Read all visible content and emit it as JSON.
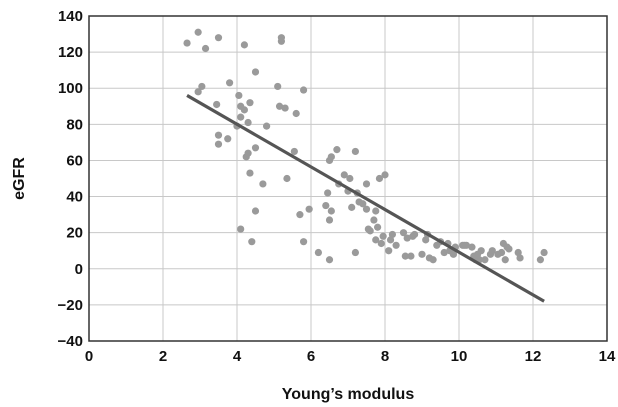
{
  "chart_data": {
    "type": "scatter",
    "title": "",
    "xlabel": "Young’s modulus",
    "ylabel": "eGFR",
    "xlim": [
      0,
      14
    ],
    "ylim": [
      -40,
      140
    ],
    "xticks": [
      0,
      2,
      4,
      6,
      8,
      10,
      12,
      14
    ],
    "yticks": [
      -40,
      -20,
      0,
      20,
      40,
      60,
      80,
      100,
      120,
      140
    ],
    "xtick_labels": [
      "0",
      "2",
      "4",
      "6",
      "8",
      "10",
      "12",
      "14"
    ],
    "ytick_labels": [
      "−40",
      "−20",
      "0",
      "20",
      "40",
      "60",
      "80",
      "100",
      "120",
      "140"
    ],
    "grid": true,
    "colors": {
      "points": "#9a9a9a",
      "trendline": "#555555"
    },
    "series": [
      {
        "points": [
          [
            2.65,
            125
          ],
          [
            2.95,
            131
          ],
          [
            3.05,
            101
          ],
          [
            3.15,
            122
          ],
          [
            3.5,
            128
          ],
          [
            2.95,
            98
          ],
          [
            3.45,
            91
          ],
          [
            3.5,
            74
          ],
          [
            3.5,
            69
          ],
          [
            3.75,
            72
          ],
          [
            3.8,
            103
          ],
          [
            4.0,
            79
          ],
          [
            4.05,
            96
          ],
          [
            4.1,
            90
          ],
          [
            4.1,
            84
          ],
          [
            4.2,
            124
          ],
          [
            4.2,
            88
          ],
          [
            4.25,
            62
          ],
          [
            4.3,
            64
          ],
          [
            4.3,
            81
          ],
          [
            4.35,
            92
          ],
          [
            4.35,
            53
          ],
          [
            4.5,
            109
          ],
          [
            4.5,
            67
          ],
          [
            4.5,
            32
          ],
          [
            4.7,
            47
          ],
          [
            4.8,
            79
          ],
          [
            4.1,
            22
          ],
          [
            4.4,
            15
          ],
          [
            5.1,
            101
          ],
          [
            5.15,
            90
          ],
          [
            5.2,
            128
          ],
          [
            5.2,
            126
          ],
          [
            5.3,
            89
          ],
          [
            5.35,
            50
          ],
          [
            5.55,
            65
          ],
          [
            5.6,
            86
          ],
          [
            5.7,
            30
          ],
          [
            5.8,
            99
          ],
          [
            5.8,
            15
          ],
          [
            5.95,
            33
          ],
          [
            6.2,
            9
          ],
          [
            6.4,
            35
          ],
          [
            6.45,
            42
          ],
          [
            6.5,
            27
          ],
          [
            6.5,
            5
          ],
          [
            6.5,
            60
          ],
          [
            6.55,
            62
          ],
          [
            6.55,
            32
          ],
          [
            6.7,
            66
          ],
          [
            6.75,
            47
          ],
          [
            6.9,
            52
          ],
          [
            7.0,
            43
          ],
          [
            7.05,
            50
          ],
          [
            7.1,
            34
          ],
          [
            7.2,
            65
          ],
          [
            7.2,
            9
          ],
          [
            7.25,
            42
          ],
          [
            7.3,
            37
          ],
          [
            7.4,
            36
          ],
          [
            7.5,
            47
          ],
          [
            7.5,
            33
          ],
          [
            7.55,
            22
          ],
          [
            7.6,
            21
          ],
          [
            7.7,
            27
          ],
          [
            7.75,
            32
          ],
          [
            7.75,
            16
          ],
          [
            7.8,
            23
          ],
          [
            7.85,
            50
          ],
          [
            7.9,
            14
          ],
          [
            7.95,
            18
          ],
          [
            8.0,
            52
          ],
          [
            8.1,
            10
          ],
          [
            8.15,
            16
          ],
          [
            8.2,
            19
          ],
          [
            8.3,
            13
          ],
          [
            8.5,
            20
          ],
          [
            8.55,
            7
          ],
          [
            8.6,
            17
          ],
          [
            8.7,
            7
          ],
          [
            8.75,
            18
          ],
          [
            8.8,
            19
          ],
          [
            9.0,
            8
          ],
          [
            9.1,
            16
          ],
          [
            9.15,
            19
          ],
          [
            9.2,
            6
          ],
          [
            9.3,
            5
          ],
          [
            9.4,
            13
          ],
          [
            9.5,
            15
          ],
          [
            9.6,
            9
          ],
          [
            9.7,
            14
          ],
          [
            9.75,
            10
          ],
          [
            9.85,
            8
          ],
          [
            9.9,
            12
          ],
          [
            10.1,
            13
          ],
          [
            10.15,
            13
          ],
          [
            10.2,
            13
          ],
          [
            10.35,
            12
          ],
          [
            10.4,
            7
          ],
          [
            10.45,
            5
          ],
          [
            10.5,
            8
          ],
          [
            10.55,
            5
          ],
          [
            10.6,
            10
          ],
          [
            10.7,
            5
          ],
          [
            10.85,
            8
          ],
          [
            10.9,
            10
          ],
          [
            11.05,
            8
          ],
          [
            11.15,
            9
          ],
          [
            11.2,
            14
          ],
          [
            11.25,
            5
          ],
          [
            11.3,
            12
          ],
          [
            11.35,
            11
          ],
          [
            11.6,
            9
          ],
          [
            11.65,
            6
          ],
          [
            12.2,
            5
          ],
          [
            12.3,
            9
          ]
        ]
      }
    ],
    "trendline": {
      "x": [
        2.65,
        12.3
      ],
      "y": [
        96,
        -18
      ]
    }
  }
}
